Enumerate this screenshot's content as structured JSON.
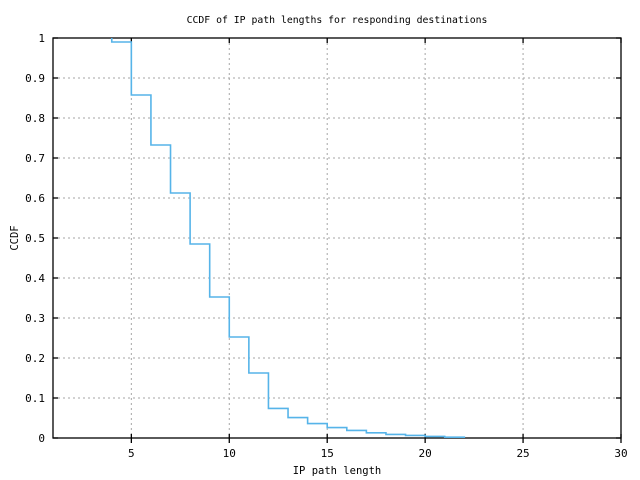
{
  "figure": {
    "background": "#ffffff",
    "border_color": "#000000",
    "text_color": "#000000"
  },
  "chart_data": {
    "type": "line",
    "subtype": "step-ccdf",
    "title": "CCDF of IP path lengths for responding destinations",
    "xlabel": "IP path length",
    "ylabel": "CCDF",
    "xlim": [
      1,
      30
    ],
    "ylim": [
      0,
      1
    ],
    "grid": {
      "enabled": true,
      "color": "#a6a6a6",
      "dash": "2,3",
      "vertical_at": [
        5,
        10,
        15,
        20,
        25
      ],
      "horizontal_at": [
        0.1,
        0.2,
        0.3,
        0.4,
        0.5,
        0.6,
        0.7,
        0.8,
        0.9
      ]
    },
    "x_ticks": {
      "values": [
        5,
        10,
        15,
        20,
        25,
        30
      ],
      "labels": [
        "5",
        "10",
        "15",
        "20",
        "25",
        "30"
      ]
    },
    "y_ticks": {
      "values": [
        0,
        0.1,
        0.2,
        0.3,
        0.4,
        0.5,
        0.6,
        0.7,
        0.8,
        0.9,
        1
      ],
      "labels": [
        "0",
        "0.1",
        "0.2",
        "0.3",
        "0.4",
        "0.5",
        "0.6",
        "0.7",
        "0.8",
        "0.9",
        "1"
      ]
    },
    "legend": "none",
    "series": [
      {
        "name": "CCDF of IP path lengths",
        "color": "#56b4e9",
        "line_width": 1.6,
        "step_start": {
          "x": 4,
          "y": 1.0
        },
        "x": [
          4,
          5,
          6,
          7,
          8,
          9,
          10,
          11,
          12,
          13,
          14,
          15,
          16,
          17,
          18,
          19,
          20,
          21,
          22
        ],
        "y": [
          0.99,
          0.8575,
          0.7325,
          0.6125,
          0.485,
          0.3525,
          0.2525,
          0.1625,
          0.074,
          0.051,
          0.036,
          0.026,
          0.019,
          0.013,
          0.009,
          0.0065,
          0.004,
          0.002,
          0
        ]
      }
    ]
  }
}
